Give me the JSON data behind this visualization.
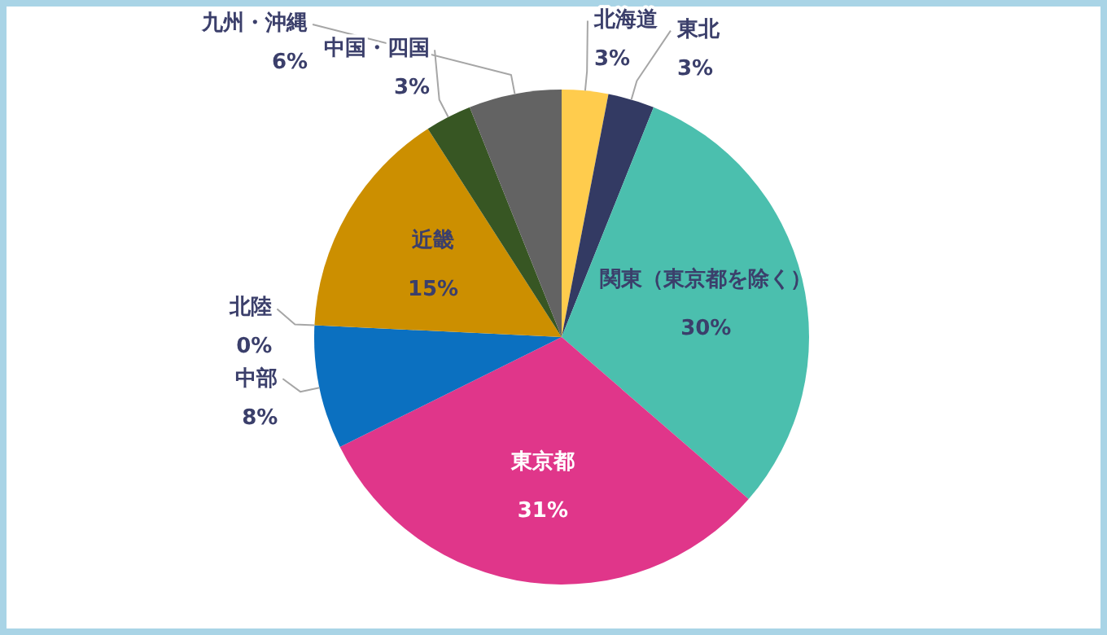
{
  "chart_data": {
    "type": "pie",
    "categories": [
      "北海道",
      "東北",
      "関東（東京都を除く）",
      "東京都",
      "中部",
      "北陸",
      "近畿",
      "中国・四国",
      "九州・沖縄"
    ],
    "values": [
      3,
      3,
      30,
      31,
      8,
      0,
      15,
      3,
      6
    ],
    "value_labels": [
      "3%",
      "3%",
      "30%",
      "31%",
      "8%",
      "0%",
      "15%",
      "3%",
      "6%"
    ],
    "colors": [
      "#ffcc4d",
      "#333a63",
      "#4bbfae",
      "#e0368a",
      "#0b70c0",
      "#70ad47",
      "#cc8f00",
      "#375623",
      "#636363"
    ]
  }
}
